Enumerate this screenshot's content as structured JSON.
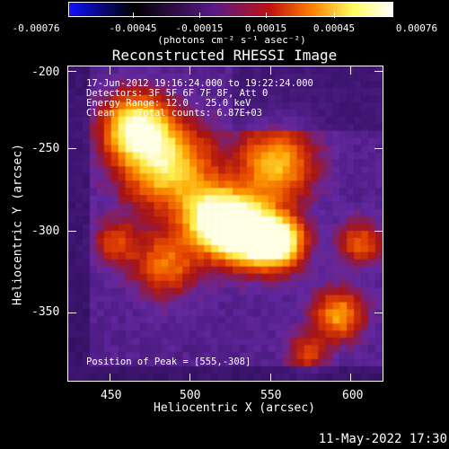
{
  "colorbar": {
    "tick_labels": [
      "-0.00076",
      "-0.00045",
      "-0.00015",
      "0.00015",
      "0.00045",
      "0.00076"
    ],
    "units": "(photons cm⁻² s⁻¹ asec⁻²)",
    "colors": [
      "#1010ff",
      "#000000",
      "#5a1a8a",
      "#c01010",
      "#ff8000",
      "#ffff60",
      "#ffffff"
    ]
  },
  "title": "Reconstructed RHESSI Image",
  "info_lines": [
    "17-Jun-2012 19:16:24.000 to 19:22:24.000",
    "Detectors: 3F 5F 6F 7F 8F, Att 0",
    "Energy Range: 12.0 - 25.0 keV",
    "Clean    Total counts: 6.87E+03"
  ],
  "peak_label": "Position of Peak = [555,-308]",
  "x_axis": {
    "label": "Heliocentric X (arcsec)",
    "ticks": [
      "450",
      "500",
      "550",
      "600"
    ],
    "range": [
      425,
      615
    ]
  },
  "y_axis": {
    "label": "Heliocentric Y (arcsec)",
    "ticks": [
      "-200",
      "-250",
      "-300",
      "-350"
    ],
    "range": [
      -390,
      -200
    ]
  },
  "footer_date": "11-May-2022 17:30"
}
